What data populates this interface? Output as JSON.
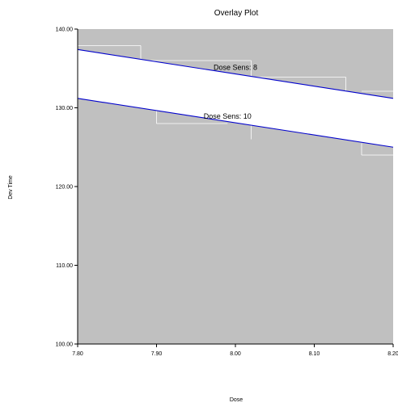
{
  "chart_data": {
    "type": "line",
    "title": "Overlay Plot",
    "xlabel": "Dose",
    "ylabel": "Dev Time",
    "xlim": [
      7.8,
      8.2
    ],
    "ylim": [
      100,
      140
    ],
    "x_ticks": [
      7.8,
      7.9,
      8.0,
      8.1,
      8.2
    ],
    "x_tick_labels": [
      "7.80",
      "7.90",
      "8.00",
      "8.10",
      "8.20"
    ],
    "y_ticks": [
      100,
      110,
      120,
      130,
      140
    ],
    "y_tick_labels": [
      "100.00",
      "110.00",
      "120.00",
      "130.00",
      "140.00"
    ],
    "grid": false,
    "colors": {
      "plot_background": "#c0c0c0",
      "band_fill": "#ffffff",
      "series_line": "#0000cc",
      "step_line": "#ffffff"
    },
    "series": [
      {
        "name": "Dose Sens: 8",
        "x": [
          7.8,
          8.2
        ],
        "y": [
          137.4,
          131.2
        ],
        "label_at": [
          8.0,
          134.8
        ]
      },
      {
        "name": "Dose Sens: 10",
        "x": [
          7.8,
          8.2
        ],
        "y": [
          131.2,
          125.0
        ],
        "label_at": [
          7.99,
          128.6
        ]
      }
    ],
    "step_overlay": {
      "segments": [
        [
          7.8,
          137.9,
          7.88,
          137.9
        ],
        [
          7.88,
          137.9,
          7.88,
          136.2
        ],
        [
          7.88,
          136.0,
          8.02,
          136.0
        ],
        [
          8.02,
          136.0,
          8.02,
          134.0
        ],
        [
          8.02,
          133.9,
          8.14,
          133.9
        ],
        [
          8.14,
          133.9,
          8.14,
          132.0
        ],
        [
          8.16,
          132.1,
          8.2,
          132.1
        ],
        [
          7.9,
          128.0,
          7.99,
          128.0
        ],
        [
          7.9,
          128.0,
          7.9,
          129.6
        ],
        [
          8.02,
          126.0,
          8.02,
          128.2
        ],
        [
          8.16,
          124.0,
          8.2,
          124.0
        ],
        [
          8.16,
          124.0,
          8.16,
          125.5
        ]
      ]
    }
  }
}
